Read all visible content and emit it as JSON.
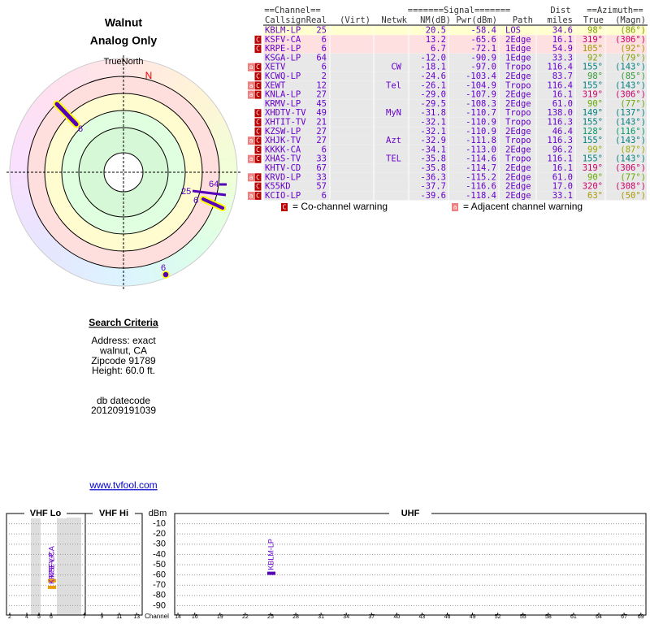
{
  "header": {
    "title": "Walnut",
    "subtitle": "Analog Only"
  },
  "radar": {
    "north_label": "TrueNorth",
    "north": "N"
  },
  "table": {
    "group_headers": [
      "==Channel==",
      "=======Signal=======",
      "Dist",
      "==Azimuth=="
    ],
    "columns": [
      "Callsign",
      "Real",
      "(Virt)",
      "Netwk",
      "NM(dB)",
      "Pwr(dBm)",
      "Path",
      "miles",
      "True",
      "(Magn)"
    ],
    "rows": [
      {
        "warn": [],
        "callsign": "KBLM-LP",
        "real": "25",
        "virt": "",
        "netwk": "",
        "nm": "20.5",
        "pwr": "-58.4",
        "path": "LOS",
        "dist": "34.6",
        "true": "98°",
        "magn": "(86°)",
        "color": "#ffffd0",
        "azcolor": "#7a9a00"
      },
      {
        "warn": [
          "C"
        ],
        "callsign": "KSFV-CA",
        "real": "6",
        "virt": "",
        "netwk": "",
        "nm": "13.2",
        "pwr": "-65.6",
        "path": "2Edge",
        "dist": "16.1",
        "true": "319°",
        "magn": "(306°)",
        "color": "#ffe0e0",
        "azcolor": "#cc0066"
      },
      {
        "warn": [
          "C"
        ],
        "callsign": "KRPE-LP",
        "real": "6",
        "virt": "",
        "netwk": "",
        "nm": "6.7",
        "pwr": "-72.1",
        "path": "1Edge",
        "dist": "54.9",
        "true": "105°",
        "magn": "(92°)",
        "color": "#ffe0e0",
        "azcolor": "#9a9a00"
      },
      {
        "warn": [],
        "callsign": "KSGA-LP",
        "real": "64",
        "virt": "",
        "netwk": "",
        "nm": "-12.0",
        "pwr": "-90.9",
        "path": "1Edge",
        "dist": "33.3",
        "true": "92°",
        "magn": "(79°)",
        "color": "#e8e8e8",
        "azcolor": "#8a9a00"
      },
      {
        "warn": [
          "a",
          "C"
        ],
        "callsign": "XETV",
        "real": "6",
        "virt": "",
        "netwk": "CW",
        "nm": "-18.1",
        "pwr": "-97.0",
        "path": "Tropo",
        "dist": "116.4",
        "true": "155°",
        "magn": "(143°)",
        "color": "#e8e8e8",
        "azcolor": "#008080"
      },
      {
        "warn": [
          "C"
        ],
        "callsign": "KCWQ-LP",
        "real": "2",
        "virt": "",
        "netwk": "",
        "nm": "-24.6",
        "pwr": "-103.4",
        "path": "2Edge",
        "dist": "83.7",
        "true": "98°",
        "magn": "(85°)",
        "color": "#e8e8e8",
        "azcolor": "#339933"
      },
      {
        "warn": [
          "a",
          "C"
        ],
        "callsign": "XEWT",
        "real": "12",
        "virt": "",
        "netwk": "Tel",
        "nm": "-26.1",
        "pwr": "-104.9",
        "path": "Tropo",
        "dist": "116.4",
        "true": "155°",
        "magn": "(143°)",
        "color": "#e8e8e8",
        "azcolor": "#008080"
      },
      {
        "warn": [
          "a",
          "C"
        ],
        "callsign": "KNLA-LP",
        "real": "27",
        "virt": "",
        "netwk": "",
        "nm": "-29.0",
        "pwr": "-107.9",
        "path": "2Edge",
        "dist": "16.1",
        "true": "319°",
        "magn": "(306°)",
        "color": "#e8e8e8",
        "azcolor": "#cc0066"
      },
      {
        "warn": [],
        "callsign": "KRMV-LP",
        "real": "45",
        "virt": "",
        "netwk": "",
        "nm": "-29.5",
        "pwr": "-108.3",
        "path": "2Edge",
        "dist": "61.0",
        "true": "90°",
        "magn": "(77°)",
        "color": "#e8e8e8",
        "azcolor": "#66aa00"
      },
      {
        "warn": [
          "C"
        ],
        "callsign": "XHDTV-TV",
        "real": "49",
        "virt": "",
        "netwk": "MyN",
        "nm": "-31.8",
        "pwr": "-110.7",
        "path": "Tropo",
        "dist": "138.0",
        "true": "149°",
        "magn": "(137°)",
        "color": "#e8e8e8",
        "azcolor": "#008080"
      },
      {
        "warn": [
          "C"
        ],
        "callsign": "XHTIT-TV",
        "real": "21",
        "virt": "",
        "netwk": "",
        "nm": "-32.1",
        "pwr": "-110.9",
        "path": "Tropo",
        "dist": "116.3",
        "true": "155°",
        "magn": "(143°)",
        "color": "#e8e8e8",
        "azcolor": "#008080"
      },
      {
        "warn": [
          "C"
        ],
        "callsign": "KZSW-LP",
        "real": "27",
        "virt": "",
        "netwk": "",
        "nm": "-32.1",
        "pwr": "-110.9",
        "path": "2Edge",
        "dist": "46.4",
        "true": "128°",
        "magn": "(116°)",
        "color": "#e8e8e8",
        "azcolor": "#009966"
      },
      {
        "warn": [
          "a",
          "C"
        ],
        "callsign": "XHJK-TV",
        "real": "27",
        "virt": "",
        "netwk": "Azt",
        "nm": "-32.9",
        "pwr": "-111.8",
        "path": "Tropo",
        "dist": "116.3",
        "true": "155°",
        "magn": "(143°)",
        "color": "#e8e8e8",
        "azcolor": "#008080"
      },
      {
        "warn": [
          "C"
        ],
        "callsign": "KKKK-CA",
        "real": "6",
        "virt": "",
        "netwk": "",
        "nm": "-34.1",
        "pwr": "-113.0",
        "path": "2Edge",
        "dist": "96.2",
        "true": "99°",
        "magn": "(87°)",
        "color": "#e8e8e8",
        "azcolor": "#99aa00"
      },
      {
        "warn": [
          "a",
          "C"
        ],
        "callsign": "XHAS-TV",
        "real": "33",
        "virt": "",
        "netwk": "TEL",
        "nm": "-35.8",
        "pwr": "-114.6",
        "path": "Tropo",
        "dist": "116.1",
        "true": "155°",
        "magn": "(143°)",
        "color": "#e8e8e8",
        "azcolor": "#008080"
      },
      {
        "warn": [],
        "callsign": "KHTV-CD",
        "real": "67",
        "virt": "",
        "netwk": "",
        "nm": "-35.8",
        "pwr": "-114.7",
        "path": "2Edge",
        "dist": "16.1",
        "true": "319°",
        "magn": "(306°)",
        "color": "#e8e8e8",
        "azcolor": "#cc0066"
      },
      {
        "warn": [
          "a",
          "C"
        ],
        "callsign": "KRVD-LP",
        "real": "33",
        "virt": "",
        "netwk": "",
        "nm": "-36.3",
        "pwr": "-115.2",
        "path": "2Edge",
        "dist": "61.0",
        "true": "90°",
        "magn": "(77°)",
        "color": "#e8e8e8",
        "azcolor": "#66aa00"
      },
      {
        "warn": [
          "C"
        ],
        "callsign": "K55KD",
        "real": "57",
        "virt": "",
        "netwk": "",
        "nm": "-37.7",
        "pwr": "-116.6",
        "path": "2Edge",
        "dist": "17.0",
        "true": "320°",
        "magn": "(308°)",
        "color": "#e8e8e8",
        "azcolor": "#cc0066"
      },
      {
        "warn": [
          "a",
          "C"
        ],
        "callsign": "KCIO-LP",
        "real": "6",
        "virt": "",
        "netwk": "",
        "nm": "-39.6",
        "pwr": "-118.4",
        "path": "2Edge",
        "dist": "33.1",
        "true": "63°",
        "magn": "(50°)",
        "color": "#e8e8e8",
        "azcolor": "#aa9900"
      }
    ]
  },
  "legend": {
    "co_icon": "C",
    "co_text": "= Co-channel warning",
    "adj_icon": "a",
    "adj_text": "= Adjacent channel warning"
  },
  "criteria": {
    "title": "Search Criteria",
    "lines": [
      "Address: exact",
      "walnut, CA",
      "Zipcode 91789",
      "Height: 60.0 ft."
    ],
    "db_label": "db datecode",
    "db_code": "201209191039"
  },
  "link": "www.tvfool.com",
  "spectrum": {
    "bands": [
      "VHF Lo",
      "VHF Hi",
      "UHF"
    ],
    "y_label": "dBm",
    "x_label": "Channel",
    "ylim": [
      -4,
      -96
    ],
    "yticks": [
      -10,
      -20,
      -30,
      -40,
      -50,
      -60,
      -70,
      -80,
      -90
    ],
    "xticks": [
      2,
      4,
      5,
      6,
      7,
      9,
      11,
      13,
      14,
      16,
      19,
      22,
      25,
      28,
      31,
      34,
      37,
      40,
      43,
      46,
      49,
      52,
      55,
      58,
      61,
      64,
      67,
      69
    ],
    "stations": [
      {
        "name": "KBLM-LP",
        "channel": 25,
        "value": -58.4,
        "color": "#5500bb"
      },
      {
        "name": "KSFV-CA",
        "channel": 6,
        "value": -65.6,
        "color": "#ee9900"
      },
      {
        "name": "KRPE-LP",
        "channel": 6,
        "value": -72.1,
        "color": "#ee9900"
      }
    ]
  }
}
